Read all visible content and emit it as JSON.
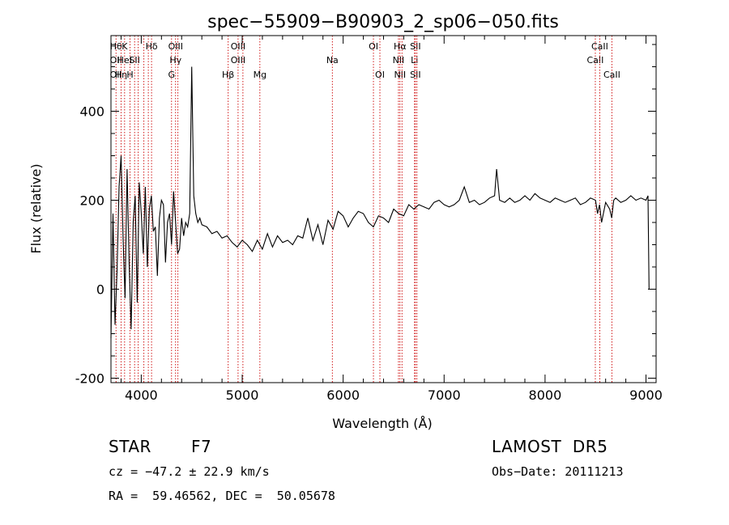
{
  "chart_data": {
    "type": "line",
    "title": "spec−55909−B90903_2_sp06−050.fits",
    "xlabel": "Wavelength (Å)",
    "ylabel": "Flux (relative)",
    "xlim": [
      3700,
      9100
    ],
    "ylim": [
      -210,
      570
    ],
    "xticks": [
      4000,
      5000,
      6000,
      7000,
      8000,
      9000
    ],
    "yticks": [
      -200,
      0,
      200,
      400
    ],
    "grid": false,
    "line_color": "#000000",
    "marker_color": "#cc0000",
    "series": [
      {
        "x": [
          3700,
          3720,
          3740,
          3760,
          3780,
          3800,
          3820,
          3840,
          3860,
          3880,
          3900,
          3920,
          3940,
          3960,
          3980,
          4000,
          4020,
          4040,
          4060,
          4080,
          4100,
          4120,
          4140,
          4160,
          4180,
          4200,
          4220,
          4240,
          4260,
          4280,
          4300,
          4320,
          4340,
          4360,
          4380,
          4400,
          4420,
          4440,
          4460,
          4480,
          4500,
          4520,
          4540,
          4560,
          4580,
          4600,
          4650,
          4700,
          4750,
          4800,
          4850,
          4900,
          4950,
          5000,
          5050,
          5100,
          5150,
          5200,
          5250,
          5300,
          5350,
          5400,
          5450,
          5500,
          5550,
          5600,
          5650,
          5700,
          5750,
          5800,
          5850,
          5900,
          5950,
          6000,
          6050,
          6100,
          6150,
          6200,
          6250,
          6300,
          6350,
          6400,
          6450,
          6500,
          6550,
          6600,
          6650,
          6700,
          6750,
          6800,
          6850,
          6900,
          6950,
          7000,
          7050,
          7100,
          7150,
          7200,
          7250,
          7300,
          7350,
          7400,
          7450,
          7500,
          7520,
          7550,
          7600,
          7650,
          7700,
          7750,
          7800,
          7850,
          7900,
          7950,
          8000,
          8050,
          8100,
          8150,
          8200,
          8250,
          8300,
          8350,
          8400,
          8450,
          8500,
          8520,
          8540,
          8560,
          8600,
          8640,
          8660,
          8680,
          8700,
          8750,
          8800,
          8850,
          8900,
          8950,
          9000,
          9020,
          9030
        ],
        "y": [
          -110,
          170,
          -80,
          40,
          230,
          300,
          110,
          -20,
          270,
          60,
          -90,
          150,
          210,
          -30,
          240,
          170,
          80,
          230,
          50,
          180,
          210,
          130,
          140,
          30,
          160,
          200,
          190,
          60,
          150,
          170,
          100,
          220,
          150,
          80,
          90,
          160,
          120,
          150,
          140,
          170,
          500,
          210,
          170,
          150,
          160,
          145,
          140,
          125,
          130,
          115,
          120,
          105,
          95,
          110,
          100,
          85,
          110,
          90,
          125,
          95,
          120,
          105,
          110,
          100,
          120,
          115,
          160,
          110,
          145,
          100,
          155,
          135,
          175,
          165,
          140,
          160,
          175,
          170,
          150,
          140,
          165,
          160,
          150,
          180,
          170,
          165,
          190,
          180,
          190,
          185,
          180,
          195,
          200,
          190,
          185,
          190,
          200,
          230,
          195,
          200,
          190,
          195,
          205,
          210,
          270,
          200,
          195,
          205,
          195,
          200,
          210,
          200,
          215,
          205,
          200,
          195,
          205,
          200,
          195,
          200,
          205,
          190,
          195,
          205,
          200,
          170,
          190,
          150,
          195,
          180,
          160,
          200,
          205,
          195,
          200,
          210,
          200,
          205,
          200,
          210,
          0
        ]
      }
    ],
    "lines": [
      {
        "w": 3750,
        "top": "Hθ",
        "mid": "OII",
        "low": "OII"
      },
      {
        "w": 3800,
        "top": "",
        "mid": "",
        "low": "Hη"
      },
      {
        "w": 3835,
        "top": "K",
        "mid": "HeI",
        "low": ""
      },
      {
        "w": 3889,
        "top": "",
        "mid": "",
        "low": "H"
      },
      {
        "w": 3934,
        "top": "",
        "mid": "SII",
        "low": ""
      },
      {
        "w": 3970,
        "top": "",
        "mid": "",
        "low": ""
      },
      {
        "w": 4026,
        "top": "",
        "mid": "",
        "low": ""
      },
      {
        "w": 4070,
        "top": "",
        "mid": "",
        "low": ""
      },
      {
        "w": 4102,
        "top": "Hδ",
        "mid": "",
        "low": ""
      },
      {
        "w": 4300,
        "top": "",
        "mid": "",
        "low": "G"
      },
      {
        "w": 4340,
        "top": "OIII",
        "mid": "Hγ",
        "low": ""
      },
      {
        "w": 4363,
        "top": "",
        "mid": "",
        "low": ""
      },
      {
        "w": 4861,
        "top": "",
        "mid": "",
        "low": "Hβ"
      },
      {
        "w": 4959,
        "top": "OIII",
        "mid": "OIII",
        "low": ""
      },
      {
        "w": 5007,
        "top": "",
        "mid": "",
        "low": ""
      },
      {
        "w": 5175,
        "top": "",
        "mid": "",
        "low": "Mg"
      },
      {
        "w": 5893,
        "top": "",
        "mid": "Na",
        "low": ""
      },
      {
        "w": 6300,
        "top": "OI",
        "mid": "",
        "low": ""
      },
      {
        "w": 6364,
        "top": "",
        "mid": "",
        "low": "OI"
      },
      {
        "w": 6548,
        "top": "",
        "mid": "NII",
        "low": ""
      },
      {
        "w": 6563,
        "top": "Hα",
        "mid": "",
        "low": "NII"
      },
      {
        "w": 6583,
        "top": "",
        "mid": "",
        "low": ""
      },
      {
        "w": 6707,
        "top": "",
        "mid": "Li",
        "low": ""
      },
      {
        "w": 6716,
        "top": "SII",
        "mid": "",
        "low": "SII"
      },
      {
        "w": 6731,
        "top": "",
        "mid": "",
        "low": ""
      },
      {
        "w": 8498,
        "top": "",
        "mid": "CaII",
        "low": ""
      },
      {
        "w": 8542,
        "top": "CaII",
        "mid": "",
        "low": ""
      },
      {
        "w": 8662,
        "top": "",
        "mid": "",
        "low": "CaII"
      }
    ]
  },
  "info": {
    "object_type": "STAR",
    "subclass": "F7",
    "survey": "LAMOST  DR5",
    "cz": "cz = −47.2 ± 22.9 km/s",
    "obs_date": "Obs−Date: 20111213",
    "coords": "RA =  59.46562, DEC =  50.05678"
  }
}
